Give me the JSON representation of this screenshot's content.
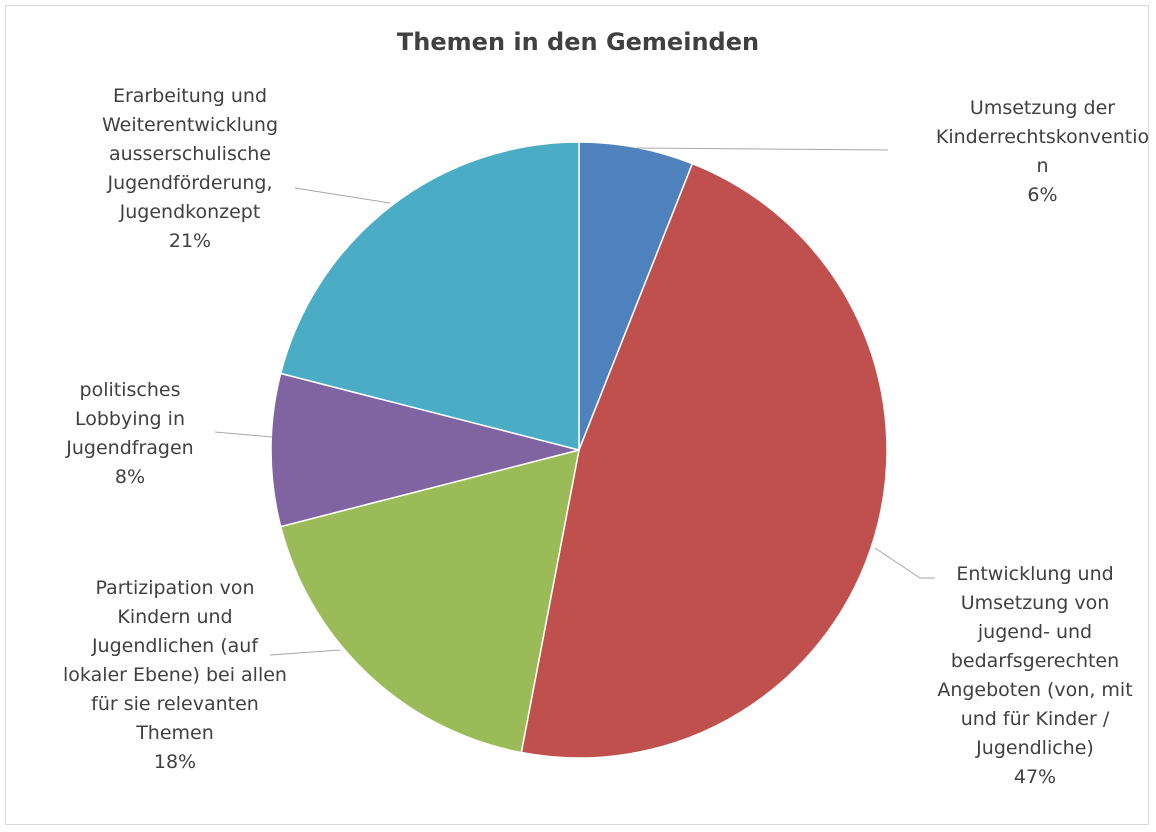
{
  "chart_data": {
    "type": "pie",
    "title": "Themen in den Gemeinden",
    "categories": [
      "Umsetzung der Kinderrechtskonvention",
      "Entwicklung und Umsetzung von jugend- und bedarfsgerechten Angeboten (von, mit und für Kinder / Jugendliche)",
      "Partizipation von Kindern und Jugendlichen (auf lokaler Ebene) bei allen für sie relevanten Themen",
      "politisches Lobbying in Jugendfragen",
      "Erarbeitung und Weiterentwicklung ausserschulische Jugendförderung, Jugendkonzept"
    ],
    "values": [
      6,
      47,
      18,
      8,
      21
    ],
    "value_labels": [
      "6%",
      "47%",
      "18%",
      "8%",
      "21%"
    ],
    "colors": [
      "#4f81bd",
      "#c0504d",
      "#9bbb59",
      "#8064a2",
      "#4bacc6"
    ]
  }
}
